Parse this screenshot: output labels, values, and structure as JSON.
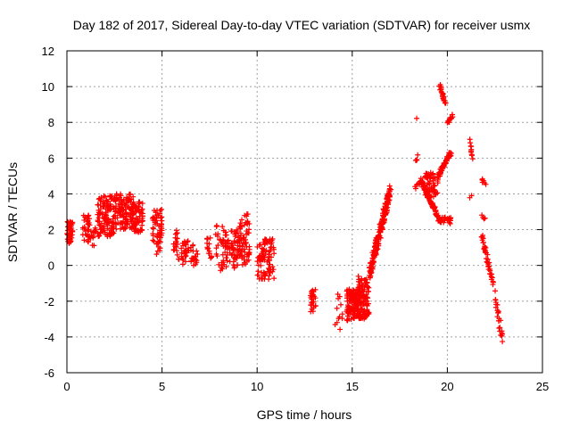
{
  "colors": {
    "series": "#ff0000",
    "grid": "#a0a0a0",
    "axis": "#000000",
    "background": "#ffffff"
  },
  "chart_data": {
    "type": "scatter",
    "title": "Day 182 of 2017, Sidereal Day-to-day VTEC variation (SDTVAR) for receiver usmx",
    "xlabel": "GPS time / hours",
    "ylabel": "SDTVAR / TECUs",
    "xlim": [
      0,
      25
    ],
    "ylim": [
      -6,
      12
    ],
    "xticks": [
      0,
      5,
      10,
      15,
      20,
      25
    ],
    "yticks": [
      -6,
      -4,
      -2,
      0,
      2,
      4,
      6,
      8,
      10,
      12
    ],
    "grid": true,
    "marker": "+",
    "segments": [
      {
        "x0": 0.0,
        "x1": 0.3,
        "y0": 1.2,
        "y1": 2.5,
        "mode": "cloud",
        "n": 45
      },
      {
        "x0": 0.8,
        "x1": 1.2,
        "y0": 1.3,
        "y1": 2.9,
        "mode": "cloud",
        "n": 30
      },
      {
        "x0": 1.2,
        "x1": 1.6,
        "y0": 1.0,
        "y1": 2.2,
        "mode": "cloud",
        "n": 15
      },
      {
        "x0": 1.6,
        "x1": 2.5,
        "y0": 1.6,
        "y1": 3.9,
        "mode": "cloud",
        "n": 120
      },
      {
        "x0": 2.5,
        "x1": 3.5,
        "y0": 2.0,
        "y1": 4.0,
        "mode": "cloud",
        "n": 130
      },
      {
        "x0": 3.5,
        "x1": 4.0,
        "y0": 1.8,
        "y1": 3.6,
        "mode": "cloud",
        "n": 60
      },
      {
        "x0": 4.5,
        "x1": 5.0,
        "y0": 1.3,
        "y1": 3.2,
        "mode": "cloud",
        "n": 45
      },
      {
        "x0": 4.7,
        "x1": 5.0,
        "y0": 0.4,
        "y1": 1.6,
        "mode": "cloud",
        "n": 12
      },
      {
        "x0": 5.6,
        "x1": 5.9,
        "y0": 0.3,
        "y1": 2.0,
        "mode": "cloud",
        "n": 20
      },
      {
        "x0": 6.0,
        "x1": 6.4,
        "y0": 0.0,
        "y1": 1.5,
        "mode": "cloud",
        "n": 25
      },
      {
        "x0": 6.5,
        "x1": 6.9,
        "y0": 0.0,
        "y1": 1.2,
        "mode": "cloud",
        "n": 20
      },
      {
        "x0": 7.3,
        "x1": 7.6,
        "y0": 0.3,
        "y1": 1.6,
        "mode": "cloud",
        "n": 15
      },
      {
        "x0": 7.8,
        "x1": 8.2,
        "y0": -0.4,
        "y1": 2.3,
        "mode": "cloud",
        "n": 20
      },
      {
        "x0": 8.2,
        "x1": 9.0,
        "y0": -0.2,
        "y1": 2.0,
        "mode": "cloud",
        "n": 70
      },
      {
        "x0": 9.0,
        "x1": 9.6,
        "y0": 0.0,
        "y1": 2.9,
        "mode": "cloud",
        "n": 70
      },
      {
        "x0": 10.0,
        "x1": 10.4,
        "y0": -0.9,
        "y1": 1.3,
        "mode": "cloud",
        "n": 40
      },
      {
        "x0": 10.4,
        "x1": 10.9,
        "y0": -0.8,
        "y1": 1.5,
        "mode": "cloud",
        "n": 50
      },
      {
        "x0": 12.8,
        "x1": 13.1,
        "y0": -2.8,
        "y1": -1.3,
        "mode": "cloud",
        "n": 25
      },
      {
        "x0": 14.1,
        "x1": 14.5,
        "y0": -3.6,
        "y1": -1.6,
        "mode": "cloud",
        "n": 12
      },
      {
        "x0": 14.7,
        "x1": 15.3,
        "y0": -3.1,
        "y1": -1.3,
        "mode": "cloud",
        "n": 110
      },
      {
        "x0": 15.3,
        "x1": 15.9,
        "y0": -3.0,
        "y1": -0.6,
        "mode": "cloud",
        "n": 110
      },
      {
        "x0": 15.9,
        "x1": 17.0,
        "y0": -0.5,
        "y1": 4.2,
        "mode": "line",
        "n": 170,
        "jitter": 0.4
      },
      {
        "x0": 18.3,
        "x1": 18.4,
        "y0": 8.2,
        "y1": 8.2,
        "mode": "line",
        "n": 1,
        "jitter": 0.05
      },
      {
        "x0": 18.3,
        "x1": 18.45,
        "y0": 5.8,
        "y1": 6.1,
        "mode": "line",
        "n": 4,
        "jitter": 0.1
      },
      {
        "x0": 18.3,
        "x1": 18.6,
        "y0": 4.3,
        "y1": 4.6,
        "mode": "line",
        "n": 8,
        "jitter": 0.15
      },
      {
        "x0": 18.6,
        "x1": 19.6,
        "y0": 4.8,
        "y1": 2.5,
        "mode": "line",
        "n": 80,
        "jitter": 0.15
      },
      {
        "x0": 18.8,
        "x1": 19.5,
        "y0": 5.2,
        "y1": 3.8,
        "mode": "cloud",
        "n": 55
      },
      {
        "x0": 19.5,
        "x1": 20.2,
        "y0": 5.0,
        "y1": 6.3,
        "mode": "line",
        "n": 50,
        "jitter": 0.15
      },
      {
        "x0": 19.6,
        "x1": 20.2,
        "y0": 2.3,
        "y1": 2.7,
        "mode": "cloud",
        "n": 25
      },
      {
        "x0": 19.6,
        "x1": 19.9,
        "y0": 10.1,
        "y1": 9.0,
        "mode": "line",
        "n": 25,
        "jitter": 0.1
      },
      {
        "x0": 20.0,
        "x1": 20.3,
        "y0": 7.9,
        "y1": 8.4,
        "mode": "line",
        "n": 12,
        "jitter": 0.1
      },
      {
        "x0": 21.2,
        "x1": 21.3,
        "y0": 7.0,
        "y1": 6.0,
        "mode": "line",
        "n": 10,
        "jitter": 0.15
      },
      {
        "x0": 21.2,
        "x1": 21.3,
        "y0": 3.8,
        "y1": 3.9,
        "mode": "line",
        "n": 2,
        "jitter": 0.05
      },
      {
        "x0": 21.8,
        "x1": 22.0,
        "y0": 4.8,
        "y1": 4.6,
        "mode": "line",
        "n": 6,
        "jitter": 0.08
      },
      {
        "x0": 21.8,
        "x1": 22.0,
        "y0": 2.8,
        "y1": 2.6,
        "mode": "line",
        "n": 4,
        "jitter": 0.08
      },
      {
        "x0": 21.8,
        "x1": 22.4,
        "y0": 1.7,
        "y1": -1.1,
        "mode": "line",
        "n": 40,
        "jitter": 0.2
      },
      {
        "x0": 22.5,
        "x1": 22.9,
        "y0": -1.7,
        "y1": -4.2,
        "mode": "line",
        "n": 25,
        "jitter": 0.3
      }
    ]
  }
}
